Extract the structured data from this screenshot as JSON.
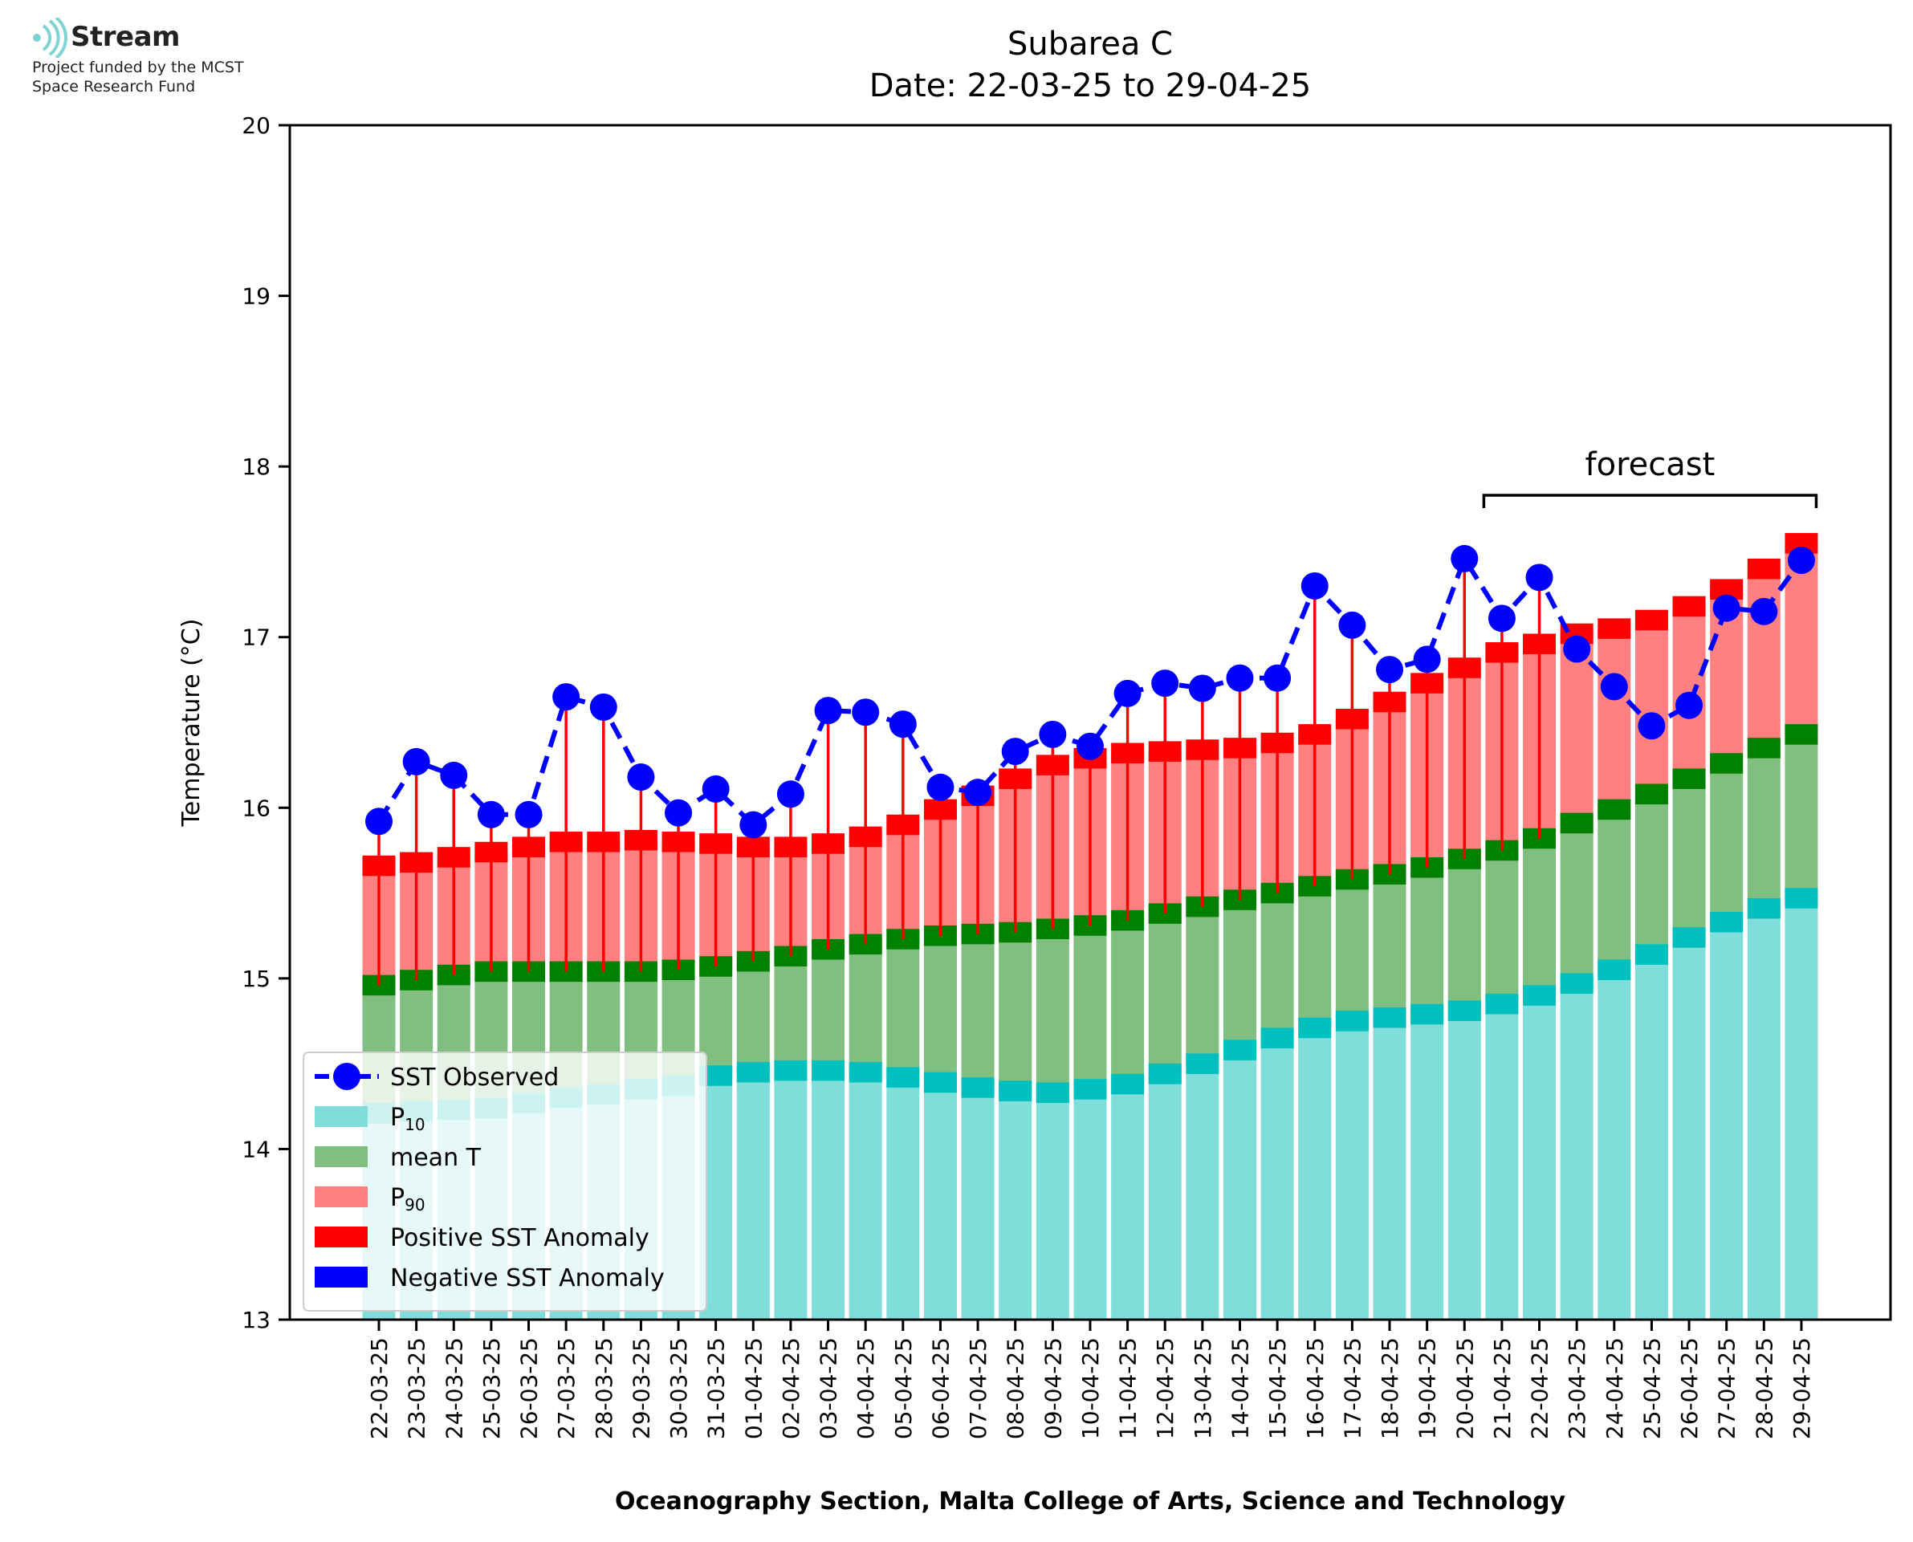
{
  "logo": {
    "name": "Stream",
    "subtitle": "Project funded by the MCST\nSpace Research Fund",
    "icon": "stream-waves-icon",
    "color": "#7fd3d3"
  },
  "chart_data": {
    "type": "bar",
    "title": "Subarea C",
    "subtitle": "Date: 22-03-25 to 29-04-25",
    "xlabel": "Oceanography Section, Malta College of Arts, Science and Technology",
    "ylabel": "Temperature (°C)",
    "ylim": [
      13,
      20
    ],
    "yticks": [
      13,
      14,
      15,
      16,
      17,
      18,
      19,
      20
    ],
    "grid": false,
    "legend_position": "lower-left",
    "categories": [
      "22-03-25",
      "23-03-25",
      "24-03-25",
      "25-03-25",
      "26-03-25",
      "27-03-25",
      "28-03-25",
      "29-03-25",
      "30-03-25",
      "31-03-25",
      "01-04-25",
      "02-04-25",
      "03-04-25",
      "04-04-25",
      "05-04-25",
      "06-04-25",
      "07-04-25",
      "08-04-25",
      "09-04-25",
      "10-04-25",
      "11-04-25",
      "12-04-25",
      "13-04-25",
      "14-04-25",
      "15-04-25",
      "16-04-25",
      "17-04-25",
      "18-04-25",
      "19-04-25",
      "20-04-25",
      "21-04-25",
      "22-04-25",
      "23-04-25",
      "24-04-25",
      "25-04-25",
      "26-04-25",
      "27-04-25",
      "28-04-25",
      "29-04-25"
    ],
    "series": [
      {
        "name": "SST Observed",
        "color": "#0000ff",
        "style": "dashed-line-markers",
        "values": [
          15.92,
          16.27,
          16.19,
          15.96,
          15.96,
          16.65,
          16.59,
          16.18,
          15.97,
          16.11,
          15.9,
          16.08,
          16.57,
          16.56,
          16.49,
          16.12,
          16.09,
          16.33,
          16.43,
          16.36,
          16.67,
          16.73,
          16.7,
          16.76,
          16.76,
          17.3,
          17.07,
          16.81,
          16.87,
          17.46,
          17.11,
          17.35,
          16.93,
          16.71,
          16.48,
          16.6,
          17.17,
          17.15,
          17.45
        ]
      },
      {
        "name": "P10",
        "color": "#80deda",
        "edge_color": "#00bfbf",
        "values": [
          14.21,
          14.22,
          14.23,
          14.24,
          14.27,
          14.3,
          14.32,
          14.35,
          14.37,
          14.43,
          14.45,
          14.46,
          14.46,
          14.45,
          14.42,
          14.39,
          14.36,
          14.34,
          14.33,
          14.35,
          14.38,
          14.44,
          14.5,
          14.58,
          14.65,
          14.71,
          14.75,
          14.77,
          14.79,
          14.81,
          14.85,
          14.9,
          14.97,
          15.05,
          15.14,
          15.24,
          15.33,
          15.41,
          15.47
        ]
      },
      {
        "name": "mean T",
        "color": "#80bf80",
        "edge_color": "#008000",
        "values": [
          14.96,
          14.99,
          15.02,
          15.04,
          15.04,
          15.04,
          15.04,
          15.04,
          15.05,
          15.07,
          15.1,
          15.13,
          15.17,
          15.2,
          15.23,
          15.25,
          15.26,
          15.27,
          15.29,
          15.31,
          15.34,
          15.38,
          15.42,
          15.46,
          15.5,
          15.54,
          15.58,
          15.61,
          15.65,
          15.7,
          15.75,
          15.82,
          15.91,
          15.99,
          16.08,
          16.17,
          16.26,
          16.35,
          16.43
        ]
      },
      {
        "name": "P90",
        "color": "#ff8080",
        "edge_color": "#ff0000",
        "values": [
          15.66,
          15.68,
          15.71,
          15.74,
          15.77,
          15.8,
          15.8,
          15.81,
          15.8,
          15.79,
          15.77,
          15.77,
          15.79,
          15.83,
          15.9,
          15.99,
          16.07,
          16.17,
          16.25,
          16.29,
          16.32,
          16.33,
          16.34,
          16.35,
          16.38,
          16.43,
          16.52,
          16.62,
          16.73,
          16.82,
          16.91,
          16.96,
          17.02,
          17.05,
          17.1,
          17.18,
          17.28,
          17.4,
          17.55
        ]
      }
    ],
    "legend": [
      {
        "label": "SST Observed",
        "kind": "marker-line",
        "color": "#0000ff"
      },
      {
        "label": "P",
        "sub": "10",
        "kind": "patch",
        "color": "#80deda"
      },
      {
        "label": "mean T",
        "kind": "patch",
        "color": "#80bf80"
      },
      {
        "label": "P",
        "sub": "90",
        "kind": "patch",
        "color": "#ff8080"
      },
      {
        "label": "Positive SST Anomaly",
        "kind": "patch",
        "color": "#ff0000"
      },
      {
        "label": "Negative SST Anomaly",
        "kind": "patch",
        "color": "#0000ff"
      }
    ],
    "annotation": {
      "text": "forecast",
      "from_category": "21-04-25",
      "to_category": "29-04-25"
    }
  }
}
